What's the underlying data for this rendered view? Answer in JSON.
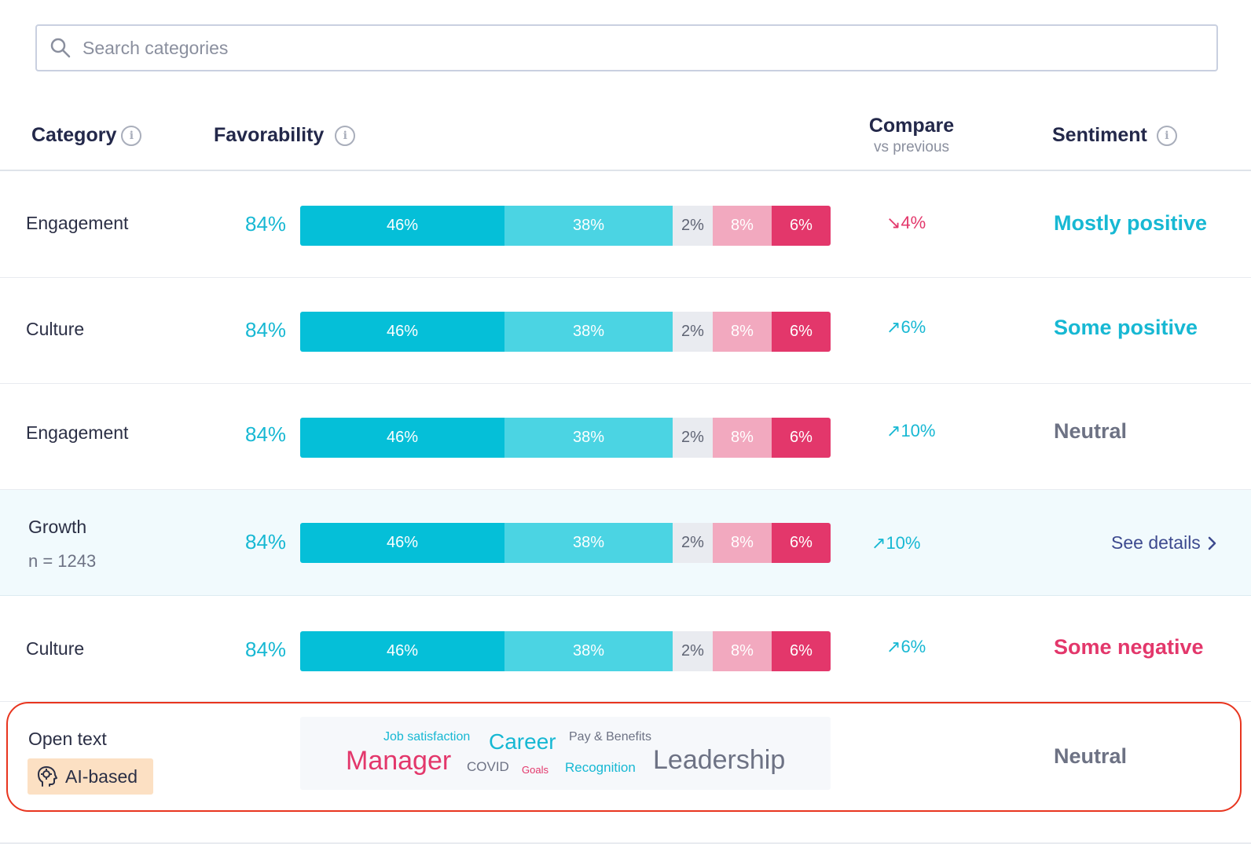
{
  "search": {
    "placeholder": "Search categories"
  },
  "header": {
    "category": "Category",
    "favorability": "Favorability",
    "compare": "Compare",
    "compare_sub": "vs previous",
    "sentiment": "Sentiment"
  },
  "rows": [
    {
      "category": "Engagement",
      "favorability": "84%",
      "segments": [
        "46%",
        "38%",
        "2%",
        "8%",
        "6%"
      ],
      "compare": "4%",
      "compare_dir": "down",
      "sentiment": "Mostly positive"
    },
    {
      "category": "Culture",
      "favorability": "84%",
      "segments": [
        "46%",
        "38%",
        "2%",
        "8%",
        "6%"
      ],
      "compare": "6%",
      "compare_dir": "up",
      "sentiment": "Some positive"
    },
    {
      "category": "Engagement",
      "favorability": "84%",
      "segments": [
        "46%",
        "38%",
        "2%",
        "8%",
        "6%"
      ],
      "compare": "10%",
      "compare_dir": "up",
      "sentiment": "Neutral"
    },
    {
      "category": "Growth",
      "n_label": "n = 1243",
      "favorability": "84%",
      "segments": [
        "46%",
        "38%",
        "2%",
        "8%",
        "6%"
      ],
      "compare": "10%",
      "compare_dir": "up",
      "details_label": "See details"
    },
    {
      "category": "Culture",
      "favorability": "84%",
      "segments": [
        "46%",
        "38%",
        "2%",
        "8%",
        "6%"
      ],
      "compare": "6%",
      "compare_dir": "up",
      "sentiment": "Some negative"
    }
  ],
  "open_text": {
    "category": "Open text",
    "badge": "AI-based",
    "sentiment": "Neutral",
    "words": [
      "Job satisfaction",
      "Career",
      "Pay & Benefits",
      "Manager",
      "COVID",
      "Goals",
      "Recognition",
      "Leadership"
    ]
  },
  "colors": {
    "teal": "#05bfd8",
    "light_teal": "#4bd4e3",
    "gray": "#e9ebf0",
    "pink": "#f2a9bf",
    "red": "#e3376b",
    "highlight_border": "#e8351f"
  },
  "icons": [
    "search-icon",
    "info-icon",
    "arrow-up-right-icon",
    "arrow-down-right-icon",
    "chevron-right-icon",
    "ai-head-icon"
  ]
}
